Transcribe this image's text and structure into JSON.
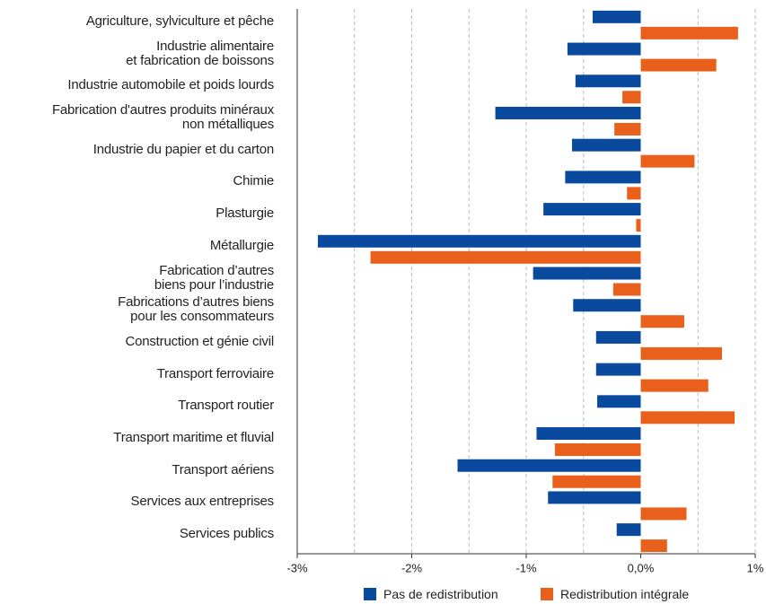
{
  "chart_data": {
    "type": "bar",
    "orientation": "horizontal",
    "categories": [
      "Agriculture, sylviculture et pêche",
      "Industrie alimentaire\net fabrication de boissons",
      "Industrie automobile et poids lourds",
      "Fabrication d'autres produits minéraux\nnon métalliques",
      "Industrie du papier et du carton",
      "Chimie",
      "Plasturgie",
      "Métallurgie",
      "Fabrication d’autres\nbiens pour l’industrie",
      "Fabrications d’autres biens\npour les consommateurs",
      "Construction et génie civil",
      "Transport ferroviaire",
      "Transport routier",
      "Transport maritime et fluvial",
      "Transport aériens",
      "Services aux entreprises",
      "Services publics"
    ],
    "series": [
      {
        "name": "Pas de redistribution",
        "color": "#0a4a9e",
        "values": [
          -0.42,
          -0.64,
          -0.57,
          -1.27,
          -0.6,
          -0.66,
          -0.85,
          -2.82,
          -0.94,
          -0.59,
          -0.39,
          -0.39,
          -0.38,
          -0.91,
          -1.6,
          -0.81,
          -0.21
        ]
      },
      {
        "name": "Redistribution intégrale",
        "color": "#e8601c",
        "values": [
          0.85,
          0.66,
          -0.16,
          -0.23,
          0.47,
          -0.12,
          -0.04,
          -2.36,
          -0.24,
          0.38,
          0.71,
          0.59,
          0.82,
          -0.75,
          -0.77,
          0.4,
          0.23
        ]
      }
    ],
    "xlim": [
      -3,
      1
    ],
    "xticks": [
      {
        "value": -3,
        "label": "-3%"
      },
      {
        "value": -2,
        "label": "-2%"
      },
      {
        "value": -1,
        "label": "-1%"
      },
      {
        "value": 0,
        "label": "0,0%"
      },
      {
        "value": 1,
        "label": "1%"
      }
    ],
    "grid_step": 0.5,
    "grid": true,
    "legend": "bottom"
  }
}
